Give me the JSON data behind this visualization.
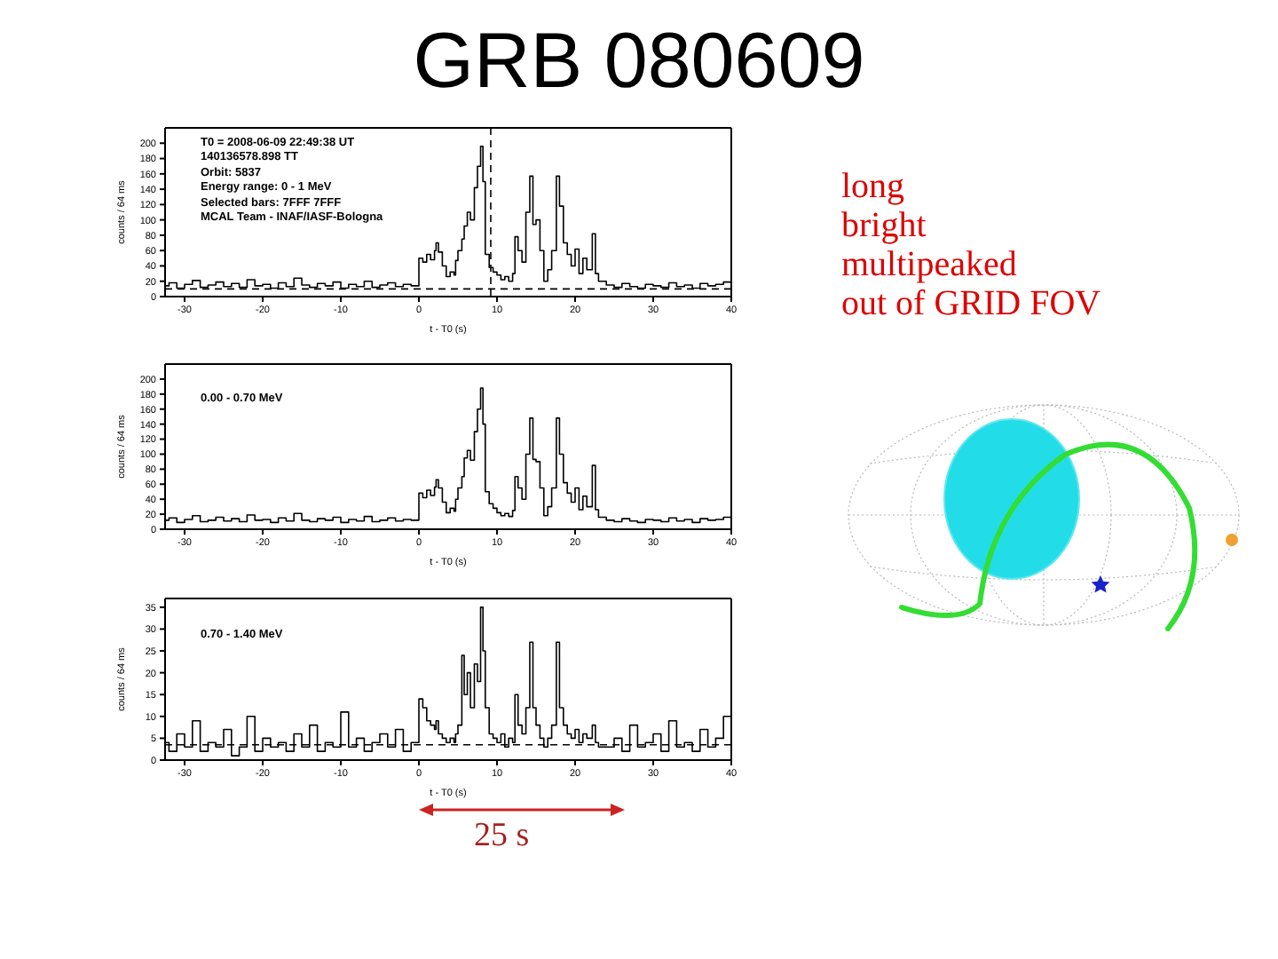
{
  "chart_data": [
    {
      "type": "step",
      "title": "GRB 080609",
      "xlabel": "t - T0 (s)",
      "ylabel": "counts / 64 ms",
      "color": "#000000",
      "x": [
        -32.5,
        -32,
        -31,
        -30,
        -29,
        -28,
        -27,
        -26,
        -25,
        -24,
        -23,
        -22,
        -21,
        -20,
        -19,
        -18,
        -17,
        -16,
        -15,
        -14,
        -13,
        -12,
        -11,
        -10,
        -9,
        -8,
        -7,
        -6,
        -5,
        -4,
        -3,
        -2,
        -1,
        0,
        0.5,
        1,
        1.5,
        2,
        2.2,
        2.5,
        3,
        3.5,
        4,
        4.5,
        4.7,
        5,
        5.5,
        5.8,
        6.2,
        6.6,
        7.1,
        7.5,
        7.9,
        8.2,
        8.5,
        9,
        9.5,
        10,
        10.5,
        11,
        11.5,
        12,
        12.3,
        12.7,
        13.2,
        13.7,
        14.2,
        14.6,
        15,
        15.5,
        16,
        16.5,
        17,
        17.6,
        18,
        18.5,
        19,
        19.5,
        20,
        20.5,
        21,
        21.5,
        22.2,
        22.6,
        23,
        24,
        25,
        26,
        27,
        28,
        29,
        30,
        31,
        32,
        33,
        34,
        35,
        36,
        37,
        38,
        39,
        40
      ],
      "values": [
        14,
        18,
        11,
        16,
        21,
        12,
        15,
        19,
        13,
        17,
        12,
        22,
        14,
        16,
        11,
        18,
        13,
        24,
        15,
        12,
        17,
        14,
        19,
        11,
        16,
        13,
        20,
        12,
        15,
        18,
        13,
        16,
        14,
        50,
        45,
        55,
        48,
        60,
        70,
        58,
        40,
        26,
        32,
        28,
        47,
        60,
        75,
        92,
        110,
        100,
        142,
        170,
        196,
        150,
        55,
        38,
        32,
        28,
        22,
        26,
        20,
        30,
        78,
        60,
        45,
        110,
        157,
        94,
        100,
        60,
        20,
        35,
        60,
        157,
        118,
        70,
        55,
        40,
        62,
        30,
        50,
        35,
        82,
        30,
        20,
        15,
        12,
        17,
        13,
        11,
        16,
        14,
        12,
        18,
        13,
        15,
        11,
        17,
        14,
        16,
        19,
        15
      ],
      "xlim": [
        -32.5,
        40
      ],
      "xticks": [
        -30,
        -20,
        -10,
        0,
        10,
        20,
        30,
        40
      ],
      "ylim": [
        0,
        220
      ],
      "yticks": [
        0,
        20,
        40,
        60,
        80,
        100,
        120,
        140,
        160,
        180,
        200
      ],
      "ref_lines": [
        {
          "axis": "x",
          "value": 9.2,
          "color": "#000000",
          "line_style": "dashed"
        },
        {
          "axis": "y",
          "value": 10,
          "color": "#000000",
          "line_style": "dashed"
        }
      ],
      "annotations": [
        "T0 = 2008-06-09 22:49:38 UT",
        "140136578.898 TT",
        "Orbit: 5837",
        "Energy range: 0 - 1 MeV",
        "Selected bars: 7FFF 7FFF",
        "MCAL Team - INAF/IASF-Bologna",
        "long\nbright\nmultipeaked\nout of GRID FOV"
      ]
    },
    {
      "type": "step",
      "xlabel": "t - T0 (s)",
      "ylabel": "counts / 64 ms",
      "color": "#000000",
      "x": [
        -32.5,
        -32,
        -31,
        -30,
        -29,
        -28,
        -27,
        -26,
        -25,
        -24,
        -23,
        -22,
        -21,
        -20,
        -19,
        -18,
        -17,
        -16,
        -15,
        -14,
        -13,
        -12,
        -11,
        -10,
        -9,
        -8,
        -7,
        -6,
        -5,
        -4,
        -3,
        -2,
        -1,
        0,
        0.5,
        1,
        1.5,
        2,
        2.2,
        2.5,
        3,
        3.5,
        4,
        4.5,
        4.7,
        5,
        5.5,
        5.8,
        6.2,
        6.6,
        7.1,
        7.5,
        7.9,
        8.2,
        8.5,
        9,
        9.5,
        10,
        10.5,
        11,
        11.5,
        12,
        12.3,
        12.7,
        13.2,
        13.7,
        14.2,
        14.6,
        15,
        15.5,
        16,
        16.5,
        17,
        17.6,
        18,
        18.5,
        19,
        19.5,
        20,
        20.5,
        21,
        21.5,
        22.2,
        22.6,
        23,
        24,
        25,
        26,
        27,
        28,
        29,
        30,
        31,
        32,
        33,
        34,
        35,
        36,
        37,
        38,
        39,
        40
      ],
      "values": [
        12,
        15,
        9,
        13,
        18,
        10,
        12,
        16,
        11,
        14,
        10,
        19,
        12,
        13,
        9,
        15,
        11,
        21,
        12,
        10,
        14,
        12,
        16,
        9,
        13,
        11,
        17,
        10,
        12,
        15,
        11,
        13,
        12,
        48,
        42,
        52,
        45,
        56,
        66,
        55,
        36,
        22,
        28,
        24,
        40,
        55,
        70,
        95,
        105,
        92,
        130,
        160,
        188,
        140,
        50,
        34,
        28,
        22,
        18,
        21,
        17,
        25,
        70,
        55,
        40,
        100,
        148,
        93,
        90,
        55,
        18,
        30,
        55,
        148,
        100,
        62,
        48,
        36,
        55,
        26,
        44,
        30,
        85,
        26,
        16,
        12,
        10,
        14,
        11,
        9,
        13,
        12,
        10,
        15,
        11,
        13,
        9,
        14,
        12,
        13,
        16,
        12
      ],
      "xlim": [
        -32.5,
        40
      ],
      "xticks": [
        -30,
        -20,
        -10,
        0,
        10,
        20,
        30,
        40
      ],
      "ylim": [
        0,
        220
      ],
      "yticks": [
        0,
        20,
        40,
        60,
        80,
        100,
        120,
        140,
        160,
        180,
        200
      ],
      "annotations": [
        "0.00 - 0.70 MeV"
      ]
    },
    {
      "type": "step",
      "xlabel": "t - T0 (s)",
      "ylabel": "counts / 64 ms",
      "color": "#000000",
      "x": [
        -32.5,
        -32,
        -31,
        -30,
        -29,
        -28,
        -27,
        -26,
        -25,
        -24,
        -23,
        -22,
        -21,
        -20,
        -19,
        -18,
        -17,
        -16,
        -15,
        -14,
        -13,
        -12,
        -11,
        -10,
        -9,
        -8,
        -7,
        -6,
        -5,
        -4,
        -3,
        -2,
        -1,
        0,
        0.5,
        1,
        1.5,
        2,
        2.2,
        2.5,
        3,
        3.5,
        4,
        4.5,
        4.7,
        5,
        5.5,
        5.8,
        6.2,
        6.6,
        7.1,
        7.5,
        7.9,
        8.2,
        8.5,
        9,
        9.5,
        10,
        10.5,
        11,
        11.5,
        12,
        12.3,
        12.7,
        13.2,
        13.7,
        14.2,
        14.6,
        15,
        15.5,
        16,
        16.5,
        17,
        17.6,
        18,
        18.5,
        19,
        19.5,
        20,
        20.5,
        21,
        21.5,
        22.2,
        22.6,
        23,
        24,
        25,
        26,
        27,
        28,
        29,
        30,
        31,
        32,
        33,
        34,
        35,
        36,
        37,
        38,
        39,
        40
      ],
      "values": [
        4,
        2,
        6,
        3,
        9,
        2,
        4,
        3,
        7,
        1,
        3,
        10,
        2,
        5,
        3,
        4,
        2,
        6,
        3,
        8,
        2,
        4,
        3,
        11,
        3,
        5,
        2,
        4,
        6,
        3,
        7,
        2,
        4,
        14,
        12,
        9,
        8,
        7,
        9,
        6,
        5,
        4,
        5,
        4,
        6,
        8,
        24,
        15,
        20,
        12,
        22,
        18,
        35,
        25,
        12,
        6,
        5,
        4,
        6,
        3,
        5,
        4,
        15,
        8,
        6,
        12,
        27,
        12,
        8,
        5,
        3,
        5,
        8,
        27,
        12,
        8,
        6,
        5,
        7,
        4,
        6,
        5,
        8,
        4,
        3,
        3,
        5,
        2,
        8,
        3,
        4,
        6,
        2,
        9,
        3,
        4,
        2,
        7,
        3,
        5,
        10,
        3
      ],
      "xlim": [
        -32.5,
        40
      ],
      "xticks": [
        -30,
        -20,
        -10,
        0,
        10,
        20,
        30,
        40
      ],
      "ylim": [
        0,
        37
      ],
      "yticks": [
        0,
        5,
        10,
        15,
        20,
        25,
        30,
        35
      ],
      "ref_lines": [
        {
          "axis": "y",
          "value": 3.5,
          "color": "#000000",
          "line_style": "dashed"
        }
      ],
      "annotations": [
        "0.70 - 1.40 MeV",
        "25 s"
      ]
    }
  ]
}
